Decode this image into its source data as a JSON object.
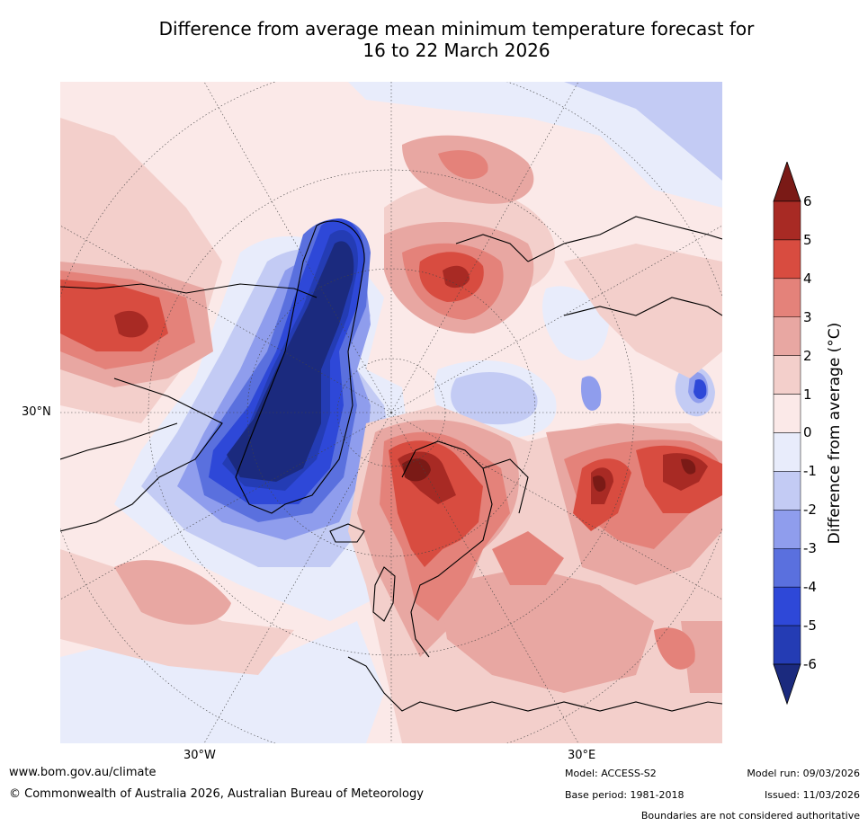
{
  "title": {
    "line1": "Difference from average mean minimum temperature forecast for",
    "line2": "16 to 22 March 2026"
  },
  "map": {
    "projection": "north-polar-stereographic",
    "lat_label": "30°N",
    "lon_labels": [
      "30°W",
      "30°E"
    ],
    "colors": {
      "background_weak_warm": "#fbe9e8",
      "warm_1_2": "#f3cfcb",
      "warm_2_3": "#e8a7a2",
      "warm_3_4": "#e4827a",
      "warm_4_5": "#d84c40",
      "warm_5_6": "#a82a24",
      "warm_gt6": "#7a1a16",
      "cool_0_1": "#e8ecfb",
      "cool_1_2": "#c3cbf4",
      "cool_2_3": "#8f9ded",
      "cool_3_4": "#5a70de",
      "cool_4_5": "#2e48d8",
      "cool_5_6": "#243cb4",
      "cool_lt_6": "#1b2a7e",
      "coast": "#000000",
      "gridline": "#444444"
    }
  },
  "colorbar": {
    "label": "Difference from average (°C)",
    "ticks": [
      "6",
      "5",
      "4",
      "3",
      "2",
      "1",
      "0",
      "-1",
      "-2",
      "-3",
      "-4",
      "-5",
      "-6"
    ],
    "bands_top_to_bottom": [
      "#7a1a16",
      "#a82a24",
      "#d84c40",
      "#e4827a",
      "#e8a7a2",
      "#f3cfcb",
      "#fbe9e8",
      "#e8ecfb",
      "#c3cbf4",
      "#8f9ded",
      "#5a70de",
      "#2e48d8",
      "#243cb4",
      "#1b2a7e"
    ]
  },
  "footer": {
    "website": "www.bom.gov.au/climate",
    "copyright": "© Commonwealth of Australia 2026, Australian Bureau of Meteorology",
    "model": "Model: ACCESS-S2",
    "base_period": "Base period: 1981-2018",
    "model_run": "Model run: 09/03/2026",
    "issued": "Issued: 11/03/2026",
    "disclaimer": "Boundaries are not considered authoritative"
  }
}
